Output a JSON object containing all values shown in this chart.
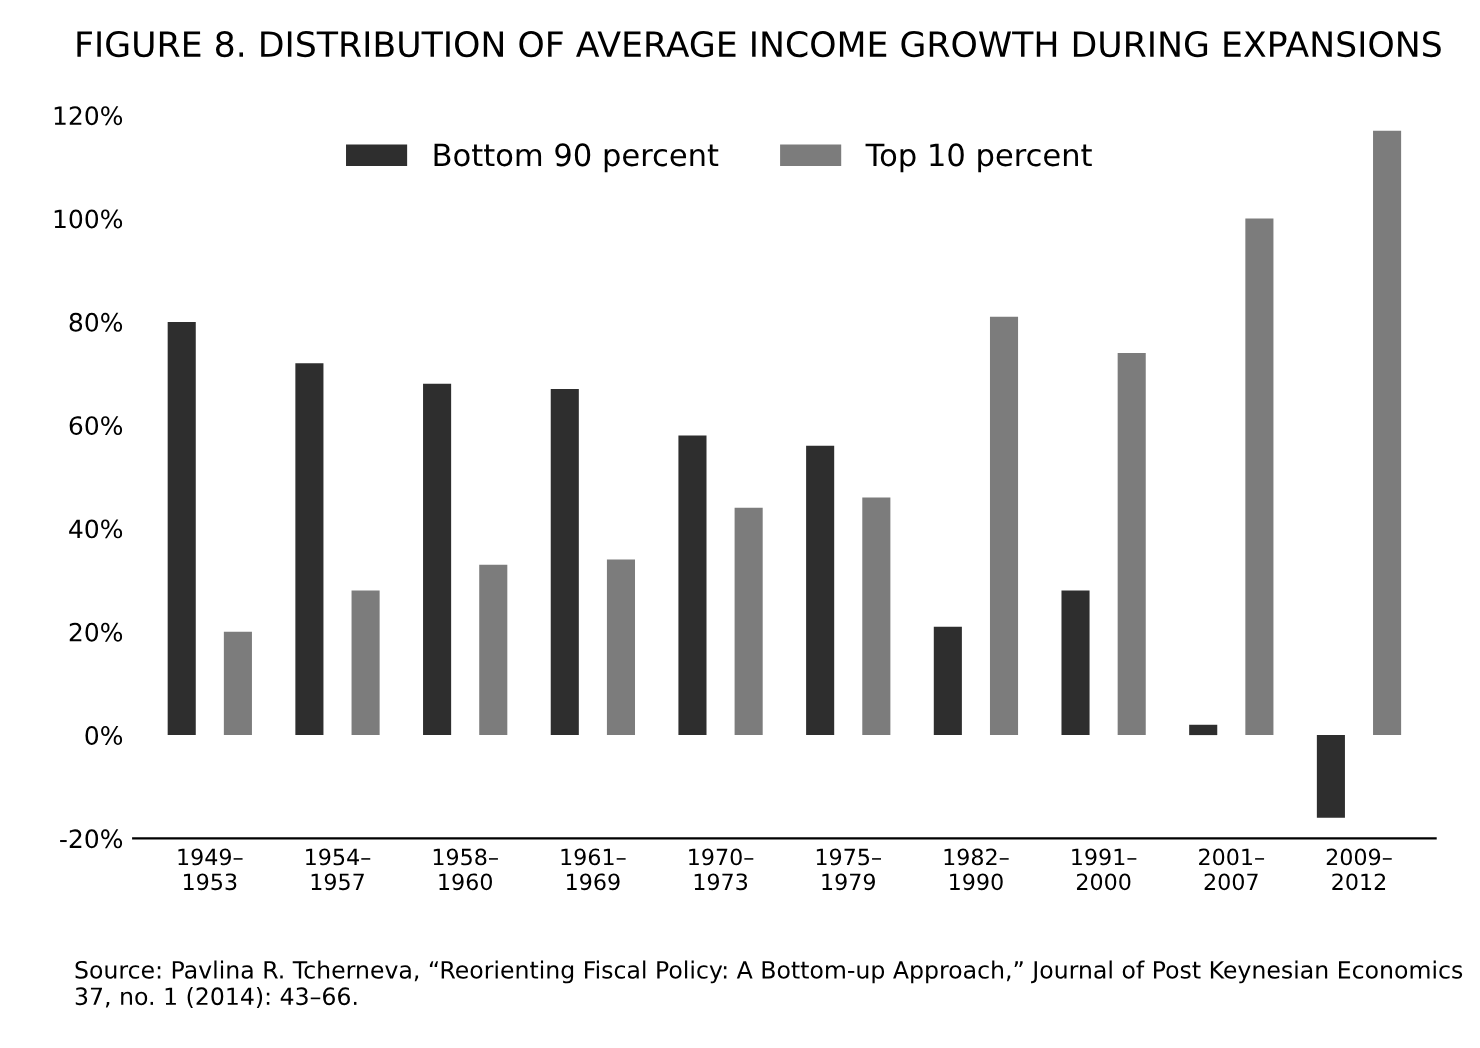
{
  "chart_data": {
    "type": "bar",
    "title": "FIGURE 8. DISTRIBUTION OF AVERAGE INCOME GROWTH DURING EXPANSIONS",
    "categories": [
      "1949–\n1953",
      "1954–\n1957",
      "1958–\n1960",
      "1961–\n1969",
      "1970–\n1973",
      "1975–\n1979",
      "1982–\n1990",
      "1991–\n2000",
      "2001–\n2007",
      "2009–\n2012"
    ],
    "series": [
      {
        "name": "Bottom 90 percent",
        "color": "#2e2e2e",
        "values": [
          80,
          72,
          68,
          67,
          58,
          56,
          21,
          28,
          2,
          -16
        ]
      },
      {
        "name": "Top 10 percent",
        "color": "#7c7c7c",
        "values": [
          20,
          28,
          33,
          34,
          44,
          46,
          81,
          74,
          100,
          117
        ]
      }
    ],
    "ylim": [
      -20,
      120
    ],
    "yticks": [
      {
        "value": -20,
        "label": "-20%"
      },
      {
        "value": 0,
        "label": "0%"
      },
      {
        "value": 20,
        "label": "20%"
      },
      {
        "value": 40,
        "label": "40%"
      },
      {
        "value": 60,
        "label": "60%"
      },
      {
        "value": 80,
        "label": "80%"
      },
      {
        "value": 100,
        "label": "100%"
      },
      {
        "value": 120,
        "label": "120%"
      }
    ],
    "grid": false,
    "legend": "top",
    "annotations": [
      "Source: Pavlina R. Tcherneva, “Reorienting Fiscal Policy: A Bottom-up Approach,” Journal of Post Keynesian Economics 37, no. 1 (2014): 43–66."
    ]
  }
}
